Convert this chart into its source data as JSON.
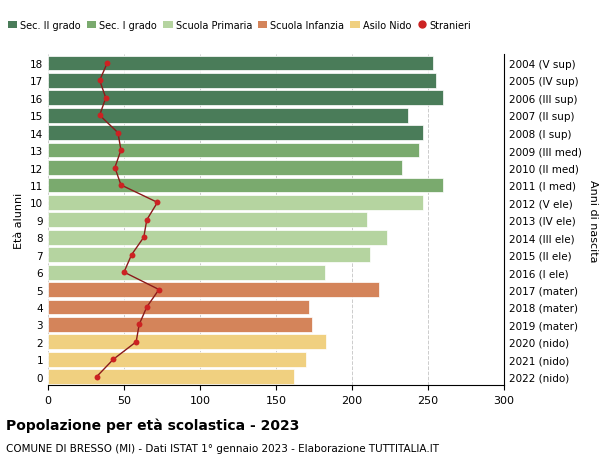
{
  "ages": [
    0,
    1,
    2,
    3,
    4,
    5,
    6,
    7,
    8,
    9,
    10,
    11,
    12,
    13,
    14,
    15,
    16,
    17,
    18
  ],
  "birth_years_by_age": {
    "0": "2022 (nido)",
    "1": "2021 (nido)",
    "2": "2020 (nido)",
    "3": "2019 (mater)",
    "4": "2018 (mater)",
    "5": "2017 (mater)",
    "6": "2016 (I ele)",
    "7": "2015 (II ele)",
    "8": "2014 (III ele)",
    "9": "2013 (IV ele)",
    "10": "2012 (V ele)",
    "11": "2011 (I med)",
    "12": "2010 (II med)",
    "13": "2009 (III med)",
    "14": "2008 (I sup)",
    "15": "2007 (II sup)",
    "16": "2006 (III sup)",
    "17": "2005 (IV sup)",
    "18": "2004 (V sup)"
  },
  "bar_values_by_age": {
    "18": 253,
    "17": 255,
    "16": 260,
    "15": 237,
    "14": 247,
    "13": 244,
    "12": 233,
    "11": 260,
    "10": 247,
    "9": 210,
    "8": 223,
    "7": 212,
    "6": 182,
    "5": 218,
    "4": 172,
    "3": 174,
    "2": 183,
    "1": 170,
    "0": 162
  },
  "stranieri_by_age": {
    "18": 39,
    "17": 34,
    "16": 38,
    "15": 34,
    "14": 46,
    "13": 48,
    "12": 44,
    "11": 48,
    "10": 72,
    "9": 65,
    "8": 63,
    "7": 55,
    "6": 50,
    "5": 73,
    "4": 65,
    "3": 60,
    "2": 58,
    "1": 43,
    "0": 32
  },
  "bar_colors_by_age": {
    "18": "#4a7c59",
    "17": "#4a7c59",
    "16": "#4a7c59",
    "15": "#4a7c59",
    "14": "#4a7c59",
    "13": "#7aaa6e",
    "12": "#7aaa6e",
    "11": "#7aaa6e",
    "10": "#b5d4a0",
    "9": "#b5d4a0",
    "8": "#b5d4a0",
    "7": "#b5d4a0",
    "6": "#b5d4a0",
    "5": "#d4845a",
    "4": "#d4845a",
    "3": "#d4845a",
    "2": "#f0d080",
    "1": "#f0d080",
    "0": "#f0d080"
  },
  "legend_labels": [
    "Sec. II grado",
    "Sec. I grado",
    "Scuola Primaria",
    "Scuola Infanzia",
    "Asilo Nido",
    "Stranieri"
  ],
  "legend_colors": [
    "#4a7c59",
    "#7aaa6e",
    "#b5d4a0",
    "#d4845a",
    "#f0d080",
    "#cc2222"
  ],
  "title": "Popolazione per età scolastica - 2023",
  "subtitle": "COMUNE DI BRESSO (MI) - Dati ISTAT 1° gennaio 2023 - Elaborazione TUTTITALIA.IT",
  "ylabel_left": "Età alunni",
  "ylabel_right": "Anni di nascita",
  "xlim": [
    0,
    300
  ],
  "xticks": [
    0,
    50,
    100,
    150,
    200,
    250,
    300
  ],
  "background_color": "#ffffff",
  "grid_color": "#cccccc",
  "line_color": "#8b1a1a",
  "dot_color": "#cc2222"
}
